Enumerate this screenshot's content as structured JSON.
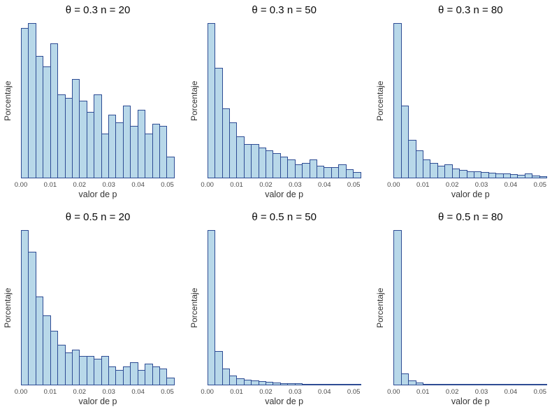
{
  "figure": {
    "background": "#ffffff",
    "bar_fill": "#b8d8e9",
    "bar_border": "#2e4c94",
    "rows": 2,
    "cols": 3
  },
  "chart_data": [
    {
      "type": "bar",
      "title": "θ = 0.3 n = 20",
      "xlabel": "valor de p",
      "ylabel": "Porcentaje",
      "x_ticks": [
        "0.00",
        "0.01",
        "0.02",
        "0.03",
        "0.04",
        "0.05"
      ],
      "xlim": [
        0,
        0.0525
      ],
      "bin_start": 0,
      "bin_width": 0.0025,
      "heights_relative": [
        0.97,
        1.0,
        0.79,
        0.72,
        0.87,
        0.54,
        0.52,
        0.64,
        0.5,
        0.43,
        0.54,
        0.29,
        0.41,
        0.36,
        0.47,
        0.34,
        0.44,
        0.29,
        0.35,
        0.34,
        0.14
      ]
    },
    {
      "type": "bar",
      "title": "θ = 0.3 n = 50",
      "xlabel": "valor de p",
      "ylabel": "Porcentaje",
      "x_ticks": [
        "0.00",
        "0.01",
        "0.02",
        "0.03",
        "0.04",
        "0.05"
      ],
      "xlim": [
        0,
        0.0525
      ],
      "bin_start": 0,
      "bin_width": 0.0025,
      "heights_relative": [
        1.0,
        0.71,
        0.45,
        0.36,
        0.27,
        0.22,
        0.22,
        0.2,
        0.18,
        0.16,
        0.14,
        0.12,
        0.09,
        0.1,
        0.12,
        0.08,
        0.07,
        0.07,
        0.09,
        0.06,
        0.04
      ]
    },
    {
      "type": "bar",
      "title": "θ = 0.3 n = 80",
      "xlabel": "valor de p",
      "ylabel": "Porcentaje",
      "x_ticks": [
        "0.00",
        "0.01",
        "0.02",
        "0.03",
        "0.04",
        "0.05"
      ],
      "xlim": [
        0,
        0.0525
      ],
      "bin_start": 0,
      "bin_width": 0.0025,
      "heights_relative": [
        1.0,
        0.47,
        0.25,
        0.18,
        0.12,
        0.1,
        0.08,
        0.09,
        0.062,
        0.053,
        0.046,
        0.046,
        0.039,
        0.034,
        0.031,
        0.031,
        0.025,
        0.022,
        0.031,
        0.018,
        0.014
      ]
    },
    {
      "type": "bar",
      "title": "θ = 0.5 n = 20",
      "xlabel": "valor de p",
      "ylabel": "Porcentaje",
      "x_ticks": [
        "0.00",
        "0.01",
        "0.02",
        "0.03",
        "0.04",
        "0.05"
      ],
      "xlim": [
        0,
        0.0525
      ],
      "bin_start": 0,
      "bin_width": 0.0025,
      "heights_relative": [
        1.0,
        0.86,
        0.57,
        0.45,
        0.35,
        0.26,
        0.21,
        0.23,
        0.19,
        0.19,
        0.17,
        0.19,
        0.12,
        0.1,
        0.12,
        0.15,
        0.1,
        0.14,
        0.12,
        0.11,
        0.05
      ]
    },
    {
      "type": "bar",
      "title": "θ = 0.5 n = 50",
      "xlabel": "valor de p",
      "ylabel": "Porcentaje",
      "x_ticks": [
        "0.00",
        "0.01",
        "0.02",
        "0.03",
        "0.04",
        "0.05"
      ],
      "xlim": [
        0,
        0.0525
      ],
      "bin_start": 0,
      "bin_width": 0.0025,
      "heights_relative": [
        1.0,
        0.22,
        0.11,
        0.065,
        0.043,
        0.034,
        0.03,
        0.026,
        0.023,
        0.018,
        0.015,
        0.015,
        0.012,
        0.011,
        0.009,
        0.008,
        0.008,
        0.006,
        0.006,
        0.005,
        0.003
      ]
    },
    {
      "type": "bar",
      "title": "θ = 0.5 n = 80",
      "xlabel": "valor de p",
      "ylabel": "Porcentaje",
      "x_ticks": [
        "0.00",
        "0.01",
        "0.02",
        "0.03",
        "0.04",
        "0.05"
      ],
      "xlim": [
        0,
        0.0525
      ],
      "bin_start": 0,
      "bin_width": 0.0025,
      "heights_relative": [
        1.0,
        0.076,
        0.033,
        0.018,
        0.008,
        0.006,
        0.005,
        0.006,
        0.004,
        0.005,
        0.003,
        0.004,
        0.003,
        0.002,
        0.003,
        0.002,
        0.002,
        0.002,
        0.001,
        0.002,
        0.001
      ]
    }
  ]
}
